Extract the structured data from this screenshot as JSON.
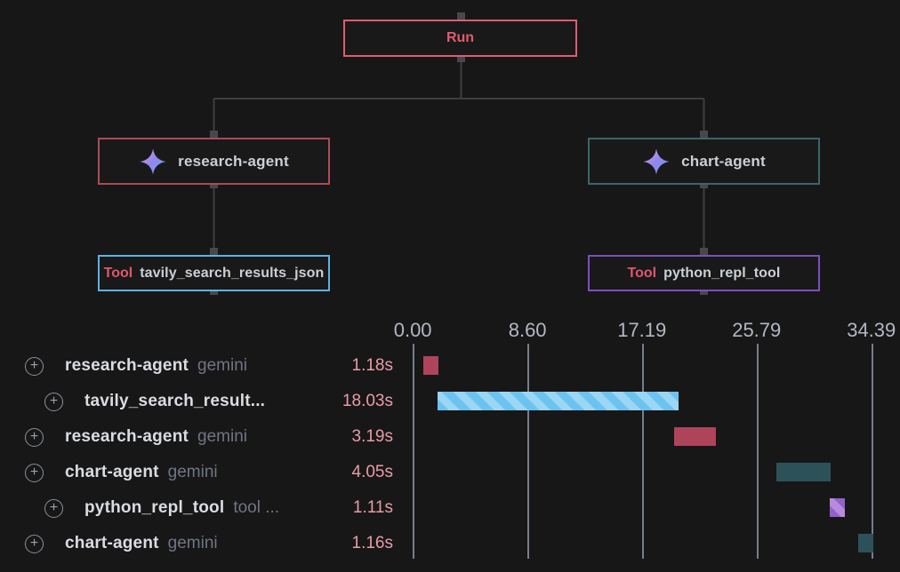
{
  "colors": {
    "background": "#171717",
    "edge": "#3e3e43",
    "handle": "#47474d",
    "run_accent": "#e25b6e",
    "research_agent_accent": "#ad4a59",
    "chart_agent_accent": "#396767",
    "tavily_accent": "#5cb3e6",
    "python_accent": "#7b4ec2",
    "tool_tag": "#e0566b",
    "node_text": "#cbd0d6",
    "axis_text": "#b2b8c2",
    "gridline": "#767e8c",
    "row_name": "#d9dce1",
    "row_suffix": "#6f7683",
    "duration_text": "#e99ca8",
    "bar_red": "#ad4459",
    "bar_blue": "#6cc3ef",
    "bar_blue_stripe": "#9bd6f4",
    "bar_teal": "#2d5159",
    "bar_purple": "#9261cc",
    "bar_purple_stripe": "#b78ade"
  },
  "graph": {
    "run": {
      "label": "Run"
    },
    "research_agent": {
      "label": "research-agent",
      "icon": "sparkle-icon"
    },
    "chart_agent": {
      "label": "chart-agent",
      "icon": "sparkle-icon"
    },
    "tavily_tool": {
      "tag": "Tool",
      "label": "tavily_search_results_json"
    },
    "python_tool": {
      "tag": "Tool",
      "label": "python_repl_tool"
    }
  },
  "chart_data": {
    "type": "gantt",
    "unit": "seconds",
    "axis": {
      "tick_labels": [
        "0.00",
        "8.60",
        "17.19",
        "25.79",
        "34.39"
      ],
      "tick_seconds": [
        0,
        8.6,
        17.19,
        25.79,
        34.39
      ],
      "range_seconds": [
        0,
        34.39
      ],
      "grid": true
    },
    "rows": [
      {
        "name": "research-agent",
        "suffix": "gemini",
        "duration_label": "1.18s",
        "duration_s": 1.18,
        "start_s": 0.7,
        "indent": 0,
        "color": "#ad4459",
        "stripe_color": null
      },
      {
        "name": "tavily_search_result...",
        "suffix": "",
        "duration_label": "18.03s",
        "duration_s": 18.03,
        "start_s": 1.82,
        "indent": 1,
        "color": "#6cc3ef",
        "stripe_color": "#9bd6f4"
      },
      {
        "name": "research-agent",
        "suffix": "gemini",
        "duration_label": "3.19s",
        "duration_s": 3.19,
        "start_s": 19.5,
        "indent": 0,
        "color": "#ad4459",
        "stripe_color": null
      },
      {
        "name": "chart-agent",
        "suffix": "gemini",
        "duration_label": "4.05s",
        "duration_s": 4.05,
        "start_s": 27.2,
        "indent": 0,
        "color": "#2d5159",
        "stripe_color": null
      },
      {
        "name": "python_repl_tool",
        "suffix": "tool ...",
        "duration_label": "1.11s",
        "duration_s": 1.11,
        "start_s": 31.2,
        "indent": 1,
        "color": "#9261cc",
        "stripe_color": "#b78ade"
      },
      {
        "name": "chart-agent",
        "suffix": "gemini",
        "duration_label": "1.16s",
        "duration_s": 1.16,
        "start_s": 33.3,
        "indent": 0,
        "color": "#2d5159",
        "stripe_color": null
      }
    ]
  }
}
